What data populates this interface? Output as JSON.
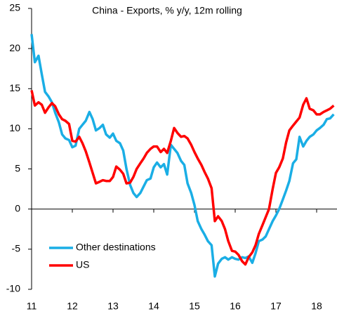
{
  "chart_data": {
    "type": "line",
    "title": "China - Exports, % y/y, 12m rolling",
    "x": [
      11,
      11.08,
      11.17,
      11.25,
      11.33,
      11.42,
      11.5,
      11.58,
      11.67,
      11.75,
      11.83,
      11.92,
      12,
      12.08,
      12.17,
      12.25,
      12.33,
      12.42,
      12.5,
      12.58,
      12.67,
      12.75,
      12.83,
      12.92,
      13,
      13.08,
      13.17,
      13.25,
      13.33,
      13.42,
      13.5,
      13.58,
      13.67,
      13.75,
      13.83,
      13.92,
      14,
      14.08,
      14.17,
      14.25,
      14.33,
      14.42,
      14.5,
      14.58,
      14.67,
      14.75,
      14.83,
      14.92,
      15,
      15.08,
      15.17,
      15.25,
      15.33,
      15.42,
      15.5,
      15.58,
      15.67,
      15.75,
      15.83,
      15.92,
      16,
      16.08,
      16.17,
      16.25,
      16.33,
      16.42,
      16.5,
      16.58,
      16.67,
      16.75,
      16.83,
      16.92,
      17,
      17.08,
      17.17,
      17.25,
      17.33,
      17.42,
      17.5,
      17.58,
      17.67,
      17.75,
      17.83,
      17.92,
      18,
      18.08,
      18.17,
      18.25,
      18.33,
      18.42
    ],
    "series": [
      {
        "name": "Other destinations",
        "color": "#1aaee5",
        "values": [
          21.8,
          18.3,
          19.1,
          16.8,
          14.6,
          14.0,
          13.3,
          12.0,
          10.8,
          9.3,
          8.8,
          8.6,
          7.7,
          7.9,
          10.0,
          10.5,
          11.0,
          12.1,
          11.2,
          9.8,
          10.1,
          10.5,
          9.3,
          8.9,
          9.4,
          8.5,
          8.2,
          7.3,
          5.0,
          3.0,
          2.0,
          1.5,
          2.0,
          2.8,
          3.6,
          3.8,
          5.2,
          5.8,
          5.2,
          5.6,
          4.3,
          8.0,
          7.5,
          7.0,
          6.0,
          5.5,
          3.2,
          2.0,
          0.5,
          -1.5,
          -2.5,
          -3.2,
          -4.0,
          -4.5,
          -8.4,
          -6.8,
          -6.2,
          -6.0,
          -6.3,
          -6.0,
          -6.2,
          -6.3,
          -6.0,
          -6.1,
          -5.9,
          -6.7,
          -5.5,
          -4.0,
          -3.8,
          -3.4,
          -2.5,
          -1.5,
          -0.8,
          0.0,
          1.2,
          2.3,
          3.5,
          5.7,
          6.2,
          9.0,
          7.8,
          8.5,
          9.0,
          9.3,
          9.8,
          10.1,
          10.5,
          11.2,
          11.3,
          11.8
        ]
      },
      {
        "name": "US",
        "color": "#ff0000",
        "values": [
          14.8,
          12.9,
          13.3,
          13.0,
          12.0,
          12.7,
          13.2,
          12.8,
          11.8,
          11.2,
          11.0,
          10.6,
          8.5,
          8.4,
          9.0,
          8.2,
          7.2,
          5.8,
          4.5,
          3.2,
          3.4,
          3.6,
          3.5,
          3.5,
          4.0,
          5.3,
          4.9,
          4.4,
          3.2,
          3.3,
          4.0,
          5.0,
          5.7,
          6.3,
          7.0,
          7.5,
          7.8,
          7.8,
          7.1,
          7.5,
          7.0,
          8.5,
          10.1,
          9.5,
          9.0,
          9.1,
          8.8,
          8.0,
          7.1,
          6.3,
          5.5,
          4.6,
          3.8,
          2.6,
          -1.5,
          -0.9,
          -1.5,
          -2.5,
          -4.0,
          -5.2,
          -5.3,
          -5.7,
          -6.5,
          -6.9,
          -6.0,
          -5.4,
          -4.5,
          -3.1,
          -2.0,
          -1.0,
          0.0,
          2.5,
          4.5,
          5.2,
          6.3,
          8.3,
          9.8,
          10.4,
          10.9,
          11.4,
          13.0,
          13.8,
          12.5,
          12.3,
          11.8,
          11.8,
          12.1,
          12.3,
          12.5,
          12.9
        ]
      }
    ],
    "xlim": [
      11,
      18.5
    ],
    "xticks": [
      11,
      12,
      13,
      14,
      15,
      16,
      17,
      18
    ],
    "ylim": [
      -10,
      25
    ],
    "yticks": [
      -10,
      -5,
      0,
      5,
      10,
      15,
      20,
      25
    ],
    "grid": false,
    "legend": "lower left"
  }
}
